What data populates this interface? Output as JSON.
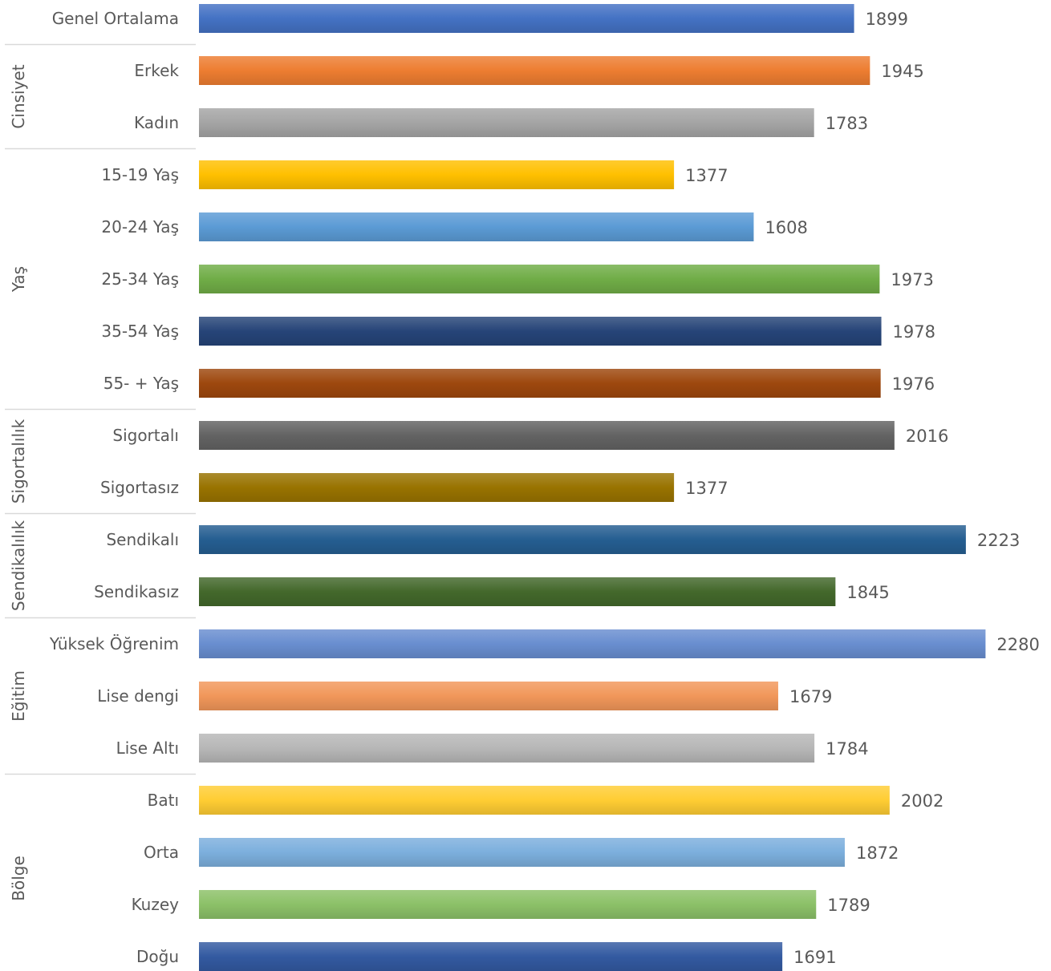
{
  "chart_data": {
    "type": "bar",
    "orientation": "horizontal",
    "title": "",
    "xlabel": "",
    "ylabel": "",
    "xlim": [
      0,
      2300
    ],
    "grid": false,
    "legend": "none",
    "groups": [
      {
        "name": "",
        "items": [
          {
            "label": "Genel Ortalama",
            "value": 1899,
            "color": "#4472C4"
          }
        ]
      },
      {
        "name": "Cinsiyet",
        "items": [
          {
            "label": "Erkek",
            "value": 1945,
            "color": "#ED7D31"
          },
          {
            "label": "Kadın",
            "value": 1783,
            "color": "#A5A5A5"
          }
        ]
      },
      {
        "name": "Yaş",
        "items": [
          {
            "label": "15-19 Yaş",
            "value": 1377,
            "color": "#FFC000"
          },
          {
            "label": "20-24 Yaş",
            "value": 1608,
            "color": "#5B9BD5"
          },
          {
            "label": "25-34 Yaş",
            "value": 1973,
            "color": "#70AD47"
          },
          {
            "label": "35-54 Yaş",
            "value": 1978,
            "color": "#264478"
          },
          {
            "label": "55- + Yaş",
            "value": 1976,
            "color": "#9E480E"
          }
        ]
      },
      {
        "name": "Sigortalılık",
        "items": [
          {
            "label": "Sigortalı",
            "value": 2016,
            "color": "#636363"
          },
          {
            "label": "Sigortasız",
            "value": 1377,
            "color": "#997300"
          }
        ]
      },
      {
        "name": "Sendikalılık",
        "items": [
          {
            "label": "Sendikalı",
            "value": 2223,
            "color": "#255E91"
          },
          {
            "label": "Sendikasız",
            "value": 1845,
            "color": "#43682B"
          }
        ]
      },
      {
        "name": "Eğitim",
        "items": [
          {
            "label": "Yüksek Öğrenim",
            "value": 2280,
            "color": "#698ED0"
          },
          {
            "label": "Lise dengi",
            "value": 1679,
            "color": "#F1975A"
          },
          {
            "label": "Lise Altı",
            "value": 1784,
            "color": "#B7B7B7"
          }
        ]
      },
      {
        "name": "Bölge",
        "items": [
          {
            "label": "Batı",
            "value": 2002,
            "color": "#FFCD33"
          },
          {
            "label": "Orta",
            "value": 1872,
            "color": "#7CAFDD"
          },
          {
            "label": "Kuzey",
            "value": 1789,
            "color": "#8CC168"
          },
          {
            "label": "Doğu",
            "value": 1691,
            "color": "#335AA1"
          }
        ]
      }
    ]
  }
}
